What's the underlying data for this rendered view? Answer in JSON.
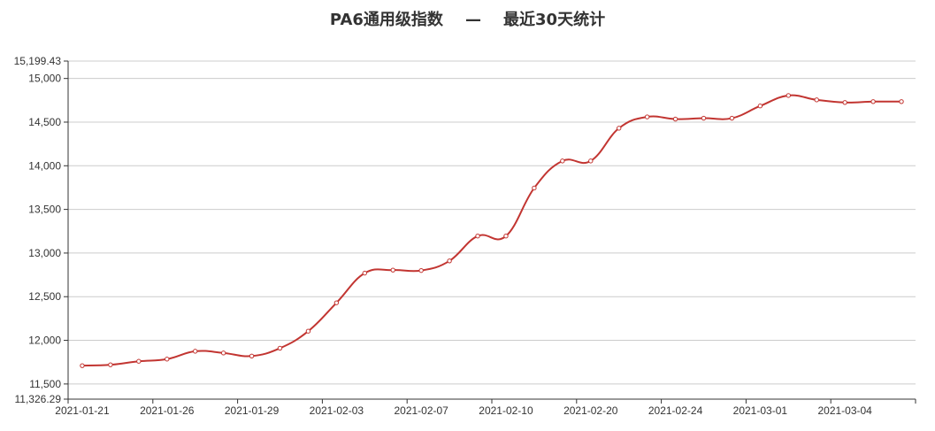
{
  "chart_data": {
    "type": "line",
    "title": "PA6通用级指数    —    最近30天统计",
    "xlabel": "",
    "ylabel": "",
    "ylim": [
      11326.29,
      15199.43
    ],
    "y_ticks": [
      "11,326.29",
      "11,500",
      "12,000",
      "12,500",
      "13,000",
      "13,500",
      "14,000",
      "14,500",
      "15,000",
      "15,199.43"
    ],
    "y_tick_values": [
      11326.29,
      11500,
      12000,
      12500,
      13000,
      13500,
      14000,
      14500,
      15000,
      15199.43
    ],
    "x_tick_labels": [
      "2021-01-21",
      "2021-01-26",
      "2021-01-29",
      "2021-02-03",
      "2021-02-07",
      "2021-02-10",
      "2021-02-20",
      "2021-02-24",
      "2021-03-01",
      "2021-03-04"
    ],
    "grid": true,
    "legend": "none",
    "line_color": "#c23531",
    "series": [
      {
        "values": [
          11710,
          11720,
          11760,
          11785,
          11875,
          11855,
          11820,
          11910,
          12105,
          12430,
          12770,
          12805,
          12800,
          12910,
          13195,
          13195,
          13745,
          14055,
          14055,
          14430,
          14560,
          14535,
          14545,
          14545,
          14685,
          14805,
          14755,
          14725,
          14735,
          14735
        ]
      }
    ]
  }
}
